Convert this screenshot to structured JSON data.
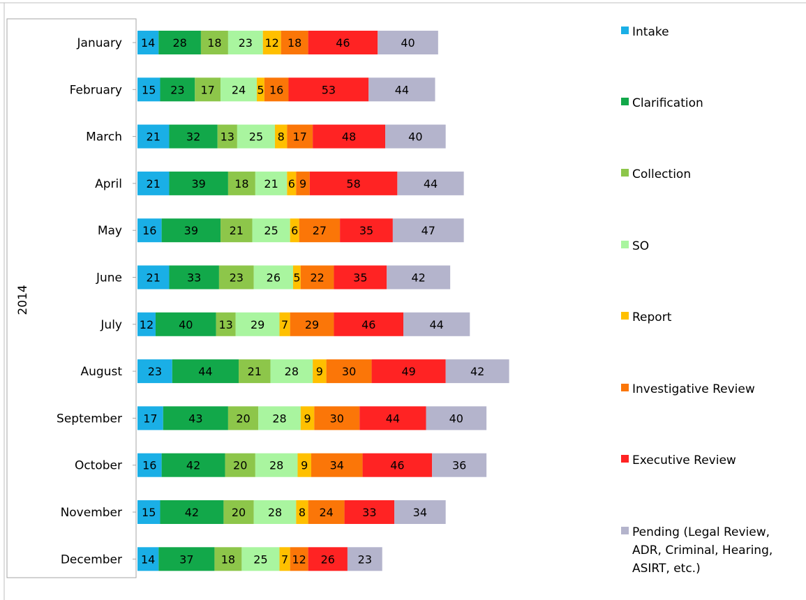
{
  "chart_data": {
    "type": "bar",
    "orientation": "horizontal",
    "stacked": true,
    "group_label": "2014",
    "categories": [
      "January",
      "February",
      "March",
      "April",
      "May",
      "June",
      "July",
      "August",
      "September",
      "October",
      "November",
      "December"
    ],
    "series": [
      {
        "name": "Intake",
        "color": "#1aafe6",
        "values": [
          14,
          15,
          21,
          21,
          16,
          21,
          12,
          23,
          17,
          16,
          15,
          14
        ]
      },
      {
        "name": "Clarification",
        "color": "#12a84a",
        "values": [
          28,
          23,
          32,
          39,
          39,
          33,
          40,
          44,
          43,
          42,
          42,
          37
        ]
      },
      {
        "name": "Collection",
        "color": "#8dc64a",
        "values": [
          18,
          17,
          13,
          18,
          21,
          23,
          13,
          21,
          20,
          20,
          20,
          18
        ]
      },
      {
        "name": "SO",
        "color": "#a9f59f",
        "values": [
          23,
          24,
          25,
          21,
          25,
          26,
          29,
          28,
          28,
          28,
          28,
          25
        ]
      },
      {
        "name": "Report",
        "color": "#ffc000",
        "values": [
          12,
          5,
          8,
          6,
          6,
          5,
          7,
          9,
          9,
          9,
          8,
          7
        ]
      },
      {
        "name": "Investigative Review",
        "color": "#fb7608",
        "values": [
          18,
          16,
          17,
          9,
          27,
          22,
          29,
          30,
          30,
          34,
          24,
          12
        ]
      },
      {
        "name": "Executive Review",
        "color": "#ff2323",
        "values": [
          46,
          53,
          48,
          58,
          35,
          35,
          46,
          49,
          44,
          46,
          33,
          26
        ]
      },
      {
        "name": "Pending (Legal Review, ADR, Criminal, Hearing, ASIRT, etc.)",
        "color": "#b4b4cc",
        "values": [
          40,
          44,
          40,
          44,
          47,
          42,
          44,
          42,
          40,
          36,
          34,
          23
        ]
      }
    ],
    "legend_position": "right",
    "grid": false
  }
}
